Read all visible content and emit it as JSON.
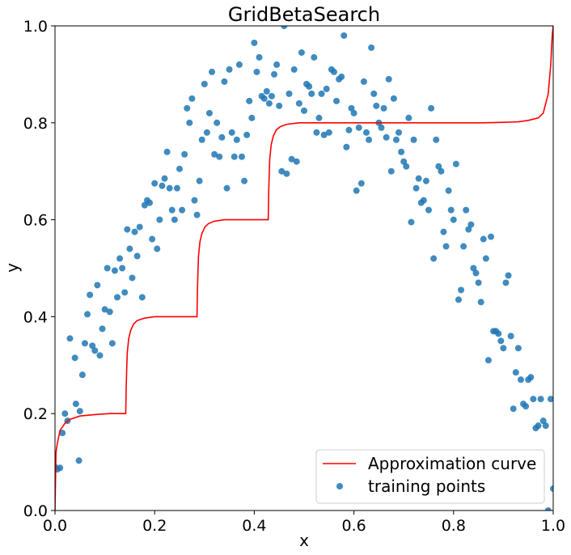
{
  "chart_data": {
    "type": "line+scatter",
    "title": "GridBetaSearch",
    "xlabel": "x",
    "ylabel": "y",
    "xlim": [
      0.0,
      1.0
    ],
    "ylim": [
      0.0,
      1.0
    ],
    "xticks": [
      "0.0",
      "0.2",
      "0.4",
      "0.6",
      "0.8",
      "1.0"
    ],
    "yticks": [
      "0.0",
      "0.2",
      "0.4",
      "0.6",
      "0.8",
      "1.0"
    ],
    "grid": false,
    "legend_position": "bottom-right",
    "series": [
      {
        "name": "Approximation curve",
        "kind": "line",
        "color": "#ff0000",
        "x": [
          0.0,
          0.002,
          0.005,
          0.01,
          0.02,
          0.03,
          0.05,
          0.08,
          0.11,
          0.135,
          0.142,
          0.143,
          0.145,
          0.148,
          0.152,
          0.158,
          0.165,
          0.18,
          0.2,
          0.23,
          0.26,
          0.28,
          0.285,
          0.286,
          0.288,
          0.291,
          0.295,
          0.301,
          0.308,
          0.32,
          0.34,
          0.37,
          0.4,
          0.425,
          0.428,
          0.429,
          0.431,
          0.434,
          0.438,
          0.444,
          0.452,
          0.465,
          0.49,
          0.53,
          0.6,
          0.7,
          0.8,
          0.86,
          0.9,
          0.93,
          0.95,
          0.97,
          0.98,
          0.99,
          0.995,
          0.998,
          1.0
        ],
        "y": [
          0.0,
          0.12,
          0.14,
          0.165,
          0.18,
          0.188,
          0.195,
          0.198,
          0.2,
          0.2,
          0.2,
          0.26,
          0.325,
          0.355,
          0.372,
          0.385,
          0.392,
          0.397,
          0.4,
          0.4,
          0.4,
          0.4,
          0.4,
          0.46,
          0.525,
          0.555,
          0.572,
          0.585,
          0.592,
          0.597,
          0.6,
          0.6,
          0.6,
          0.6,
          0.6,
          0.66,
          0.725,
          0.755,
          0.772,
          0.785,
          0.792,
          0.797,
          0.8,
          0.8,
          0.8,
          0.8,
          0.8,
          0.8,
          0.801,
          0.802,
          0.805,
          0.81,
          0.82,
          0.86,
          0.92,
          0.98,
          1.0
        ]
      },
      {
        "name": "training points",
        "kind": "scatter",
        "color": "#1f77b4",
        "x": [
          0.0,
          0.005,
          0.01,
          0.015,
          0.02,
          0.025,
          0.03,
          0.04,
          0.042,
          0.048,
          0.05,
          0.055,
          0.06,
          0.065,
          0.07,
          0.075,
          0.08,
          0.085,
          0.09,
          0.095,
          0.1,
          0.105,
          0.11,
          0.115,
          0.12,
          0.125,
          0.13,
          0.135,
          0.14,
          0.145,
          0.15,
          0.155,
          0.16,
          0.165,
          0.17,
          0.175,
          0.18,
          0.185,
          0.19,
          0.195,
          0.2,
          0.205,
          0.21,
          0.215,
          0.22,
          0.225,
          0.23,
          0.235,
          0.24,
          0.245,
          0.25,
          0.255,
          0.26,
          0.265,
          0.27,
          0.275,
          0.28,
          0.285,
          0.29,
          0.295,
          0.3,
          0.305,
          0.31,
          0.315,
          0.32,
          0.325,
          0.33,
          0.335,
          0.34,
          0.345,
          0.35,
          0.355,
          0.36,
          0.365,
          0.37,
          0.375,
          0.38,
          0.385,
          0.39,
          0.395,
          0.4,
          0.405,
          0.41,
          0.415,
          0.42,
          0.425,
          0.43,
          0.435,
          0.44,
          0.445,
          0.45,
          0.455,
          0.46,
          0.465,
          0.47,
          0.475,
          0.48,
          0.485,
          0.49,
          0.495,
          0.5,
          0.505,
          0.51,
          0.515,
          0.52,
          0.525,
          0.53,
          0.535,
          0.54,
          0.545,
          0.55,
          0.555,
          0.56,
          0.565,
          0.57,
          0.575,
          0.58,
          0.585,
          0.59,
          0.595,
          0.6,
          0.605,
          0.61,
          0.615,
          0.62,
          0.625,
          0.63,
          0.635,
          0.64,
          0.645,
          0.65,
          0.655,
          0.66,
          0.665,
          0.67,
          0.675,
          0.68,
          0.685,
          0.69,
          0.695,
          0.7,
          0.705,
          0.71,
          0.715,
          0.72,
          0.725,
          0.73,
          0.735,
          0.74,
          0.745,
          0.75,
          0.755,
          0.76,
          0.765,
          0.77,
          0.775,
          0.78,
          0.785,
          0.79,
          0.795,
          0.8,
          0.805,
          0.81,
          0.815,
          0.82,
          0.825,
          0.83,
          0.835,
          0.84,
          0.845,
          0.85,
          0.855,
          0.86,
          0.865,
          0.87,
          0.875,
          0.88,
          0.885,
          0.89,
          0.895,
          0.9,
          0.905,
          0.91,
          0.915,
          0.92,
          0.925,
          0.93,
          0.935,
          0.94,
          0.945,
          0.95,
          0.955,
          0.96,
          0.965,
          0.97,
          0.975,
          0.98,
          0.985,
          0.99,
          0.995,
          1.0
        ],
        "y": [
          0.09,
          0.085,
          0.088,
          0.16,
          0.2,
          0.185,
          0.355,
          0.315,
          0.22,
          0.103,
          0.205,
          0.28,
          0.345,
          0.405,
          0.445,
          0.34,
          0.33,
          0.465,
          0.32,
          0.375,
          0.415,
          0.5,
          0.41,
          0.345,
          0.495,
          0.44,
          0.52,
          0.5,
          0.45,
          0.58,
          0.54,
          0.48,
          0.575,
          0.525,
          0.585,
          0.44,
          0.63,
          0.64,
          0.635,
          0.56,
          0.675,
          0.54,
          0.6,
          0.67,
          0.685,
          0.74,
          0.665,
          0.62,
          0.6,
          0.665,
          0.705,
          0.62,
          0.735,
          0.83,
          0.8,
          0.85,
          0.64,
          0.61,
          0.68,
          0.765,
          0.88,
          0.78,
          0.82,
          0.905,
          0.735,
          0.8,
          0.73,
          0.77,
          0.885,
          0.665,
          0.91,
          0.78,
          0.73,
          0.765,
          0.92,
          0.73,
          0.68,
          0.775,
          0.845,
          0.81,
          0.965,
          0.905,
          0.935,
          0.855,
          0.85,
          0.865,
          0.84,
          0.855,
          0.9,
          0.92,
          0.835,
          0.7,
          1.0,
          0.695,
          0.86,
          0.725,
          0.91,
          0.72,
          0.84,
          0.945,
          0.825,
          0.88,
          0.875,
          0.86,
          0.935,
          0.78,
          0.81,
          0.86,
          0.775,
          0.87,
          0.78,
          0.91,
          0.905,
          0.845,
          0.89,
          0.895,
          0.98,
          0.75,
          0.785,
          0.83,
          0.82,
          0.66,
          0.79,
          0.675,
          0.885,
          0.78,
          0.765,
          0.955,
          0.86,
          0.835,
          0.8,
          0.79,
          0.83,
          0.77,
          0.89,
          0.7,
          0.85,
          0.765,
          0.78,
          0.74,
          0.72,
          0.71,
          0.81,
          0.595,
          0.765,
          0.665,
          0.685,
          0.635,
          0.64,
          0.68,
          0.62,
          0.83,
          0.52,
          0.765,
          0.71,
          0.7,
          0.575,
          0.545,
          0.66,
          0.62,
          0.6,
          0.715,
          0.435,
          0.455,
          0.545,
          0.62,
          0.58,
          0.59,
          0.5,
          0.49,
          0.47,
          0.43,
          0.56,
          0.52,
          0.31,
          0.565,
          0.37,
          0.37,
          0.365,
          0.35,
          0.335,
          0.47,
          0.485,
          0.36,
          0.21,
          0.285,
          0.335,
          0.27,
          0.22,
          0.215,
          0.27,
          0.275,
          0.23,
          0.17,
          0.175,
          0.23,
          0.185,
          0.175,
          0.0,
          0.23,
          0.045
        ]
      }
    ]
  }
}
